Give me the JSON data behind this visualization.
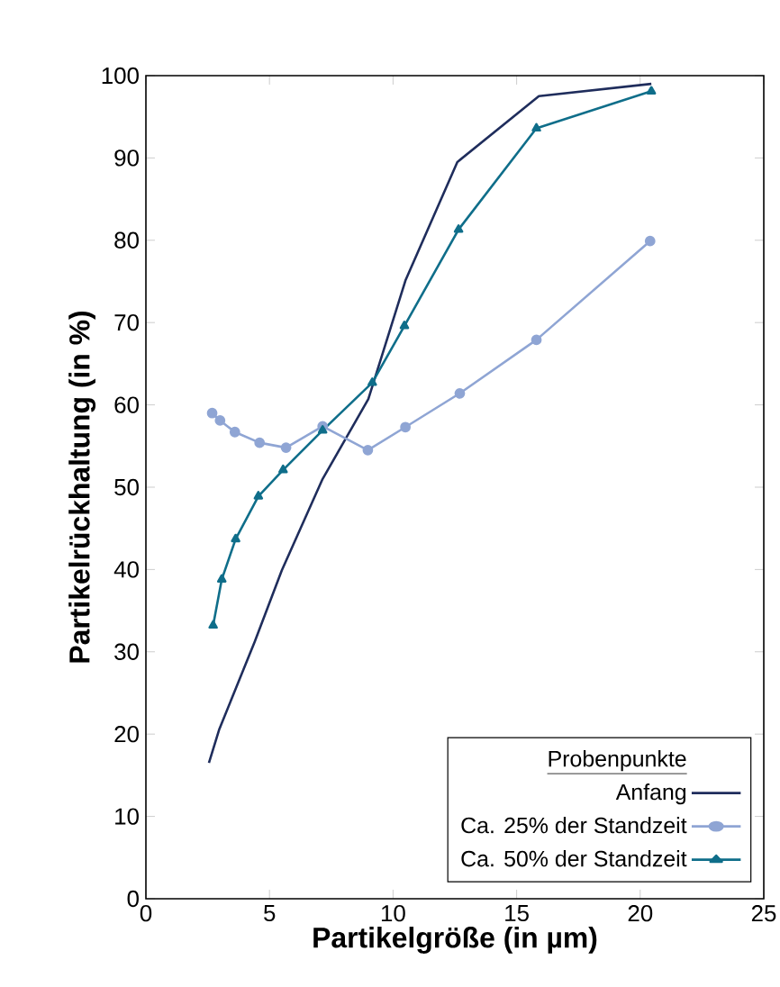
{
  "chart_data": {
    "type": "line",
    "xlabel": "Partikelgröße (in µm)",
    "ylabel": "Partikelrückhaltung (in %)",
    "legend_title": "Probenpunkte",
    "xlim": [
      0,
      25
    ],
    "xticks": [
      0,
      5,
      10,
      15,
      20,
      25
    ],
    "ylim": [
      0,
      100
    ],
    "yticks": [
      0,
      10,
      20,
      30,
      40,
      50,
      60,
      70,
      80,
      90,
      100
    ],
    "grid": false,
    "legend": "bottom right",
    "series": [
      {
        "name": "Anfang",
        "color": "#1f2d5c",
        "marker": "none",
        "x": [
          2.55,
          2.97,
          4.4,
          5.5,
          7.15,
          9.0,
          10.5,
          12.6,
          15.9,
          20.45
        ],
        "values": [
          16.5,
          20.6,
          31.2,
          39.9,
          51.0,
          60.7,
          75.1,
          89.5,
          97.5,
          99.0
        ]
      },
      {
        "name": "Ca. 25% der Standzeit",
        "color": "#8fa5d4",
        "marker": "circle",
        "x": [
          2.68,
          3.0,
          3.6,
          4.6,
          5.67,
          7.15,
          8.98,
          10.5,
          12.7,
          15.8,
          20.4
        ],
        "values": [
          59.0,
          58.1,
          56.7,
          55.4,
          54.8,
          57.4,
          54.5,
          57.3,
          61.4,
          67.9,
          79.9
        ]
      },
      {
        "name": "Ca. 50% der Standzeit",
        "color": "#0f6e8a",
        "marker": "triangle",
        "x": [
          2.72,
          3.07,
          3.63,
          4.55,
          5.55,
          7.15,
          9.16,
          10.46,
          12.65,
          15.8,
          20.45
        ],
        "values": [
          33.2,
          38.8,
          43.7,
          48.9,
          52.1,
          56.9,
          62.7,
          69.6,
          81.3,
          93.6,
          98.1
        ]
      }
    ]
  }
}
